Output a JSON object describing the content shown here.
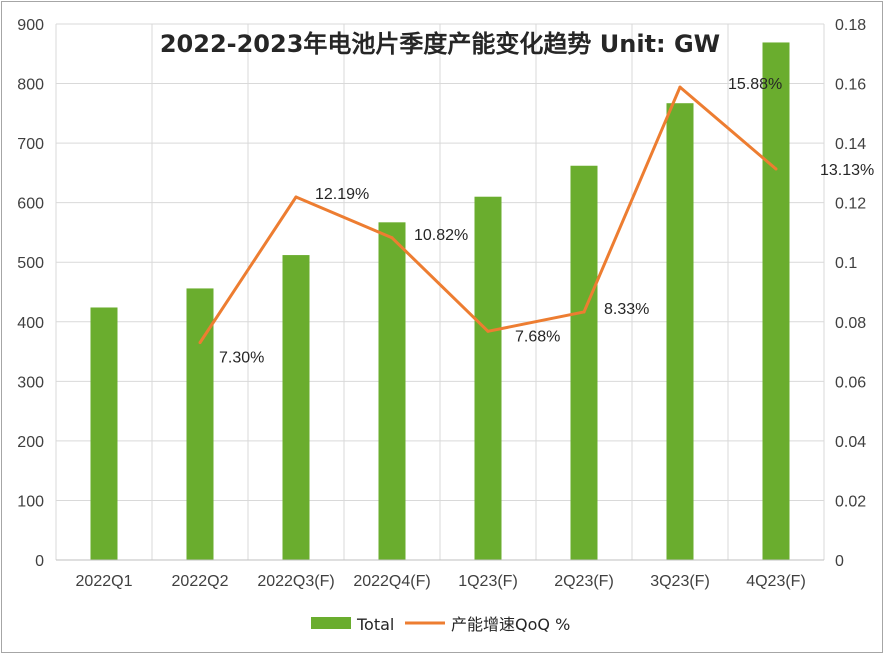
{
  "chart_data": {
    "type": "bar",
    "title": "2022-2023年电池片季度产能变化趋势 Unit: GW",
    "categories": [
      "2022Q1",
      "2022Q2",
      "2022Q3(F)",
      "2022Q4(F)",
      "1Q23(F)",
      "2Q23(F)",
      "3Q23(F)",
      "4Q23(F)"
    ],
    "series": [
      {
        "name": "Total",
        "type": "bar",
        "axis": "left",
        "color": "#6aad2e",
        "values": [
          424,
          456,
          512,
          567,
          610,
          662,
          767,
          869
        ]
      },
      {
        "name": "产能增速QoQ %",
        "type": "line",
        "axis": "right",
        "color": "#ed7d31",
        "values": [
          null,
          0.073,
          0.1219,
          0.1082,
          0.0768,
          0.0833,
          0.1588,
          0.1313
        ],
        "labels": [
          null,
          "7.30%",
          "12.19%",
          "10.82%",
          "7.68%",
          "8.33%",
          "15.88%",
          "13.13%"
        ]
      }
    ],
    "y_left": {
      "min": 0,
      "max": 900,
      "step": 100,
      "ticks": [
        "0",
        "100",
        "200",
        "300",
        "400",
        "500",
        "600",
        "700",
        "800",
        "900"
      ]
    },
    "y_right": {
      "min": 0,
      "max": 0.18,
      "step": 0.02,
      "ticks": [
        "0",
        "0.02",
        "0.04",
        "0.06",
        "0.08",
        "0.1",
        "0.12",
        "0.14",
        "0.16",
        "0.18"
      ]
    },
    "grid": true,
    "legend_position": "bottom"
  }
}
